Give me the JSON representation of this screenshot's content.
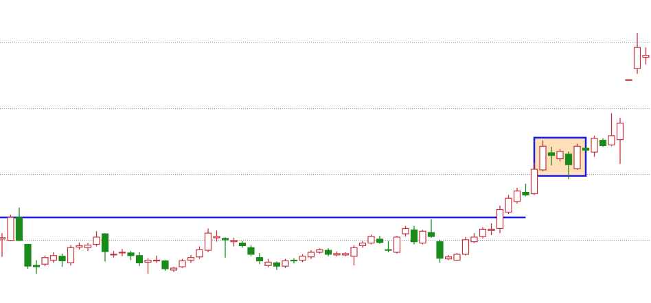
{
  "chart_data": {
    "type": "candlestick",
    "open": [
      1.01,
      0.99,
      1.34,
      0.93,
      0.61,
      0.63,
      0.69,
      0.75,
      0.65,
      0.89,
      0.88,
      0.93,
      1.09,
      0.77,
      0.8,
      0.8,
      0.76,
      0.66,
      0.68,
      0.68,
      0.54,
      0.59,
      0.69,
      0.74,
      0.84,
      1.03,
      1.02,
      0.97,
      0.95,
      0.88,
      0.73,
      0.61,
      0.65,
      0.6,
      0.69,
      0.69,
      0.74,
      0.81,
      0.84,
      0.77,
      0.77,
      0.75,
      0.91,
      0.95,
      1.01,
      0.85,
      0.81,
      1.09,
      1.15,
      0.95,
      1.11,
      0.97,
      0.71,
      0.69,
      0.78,
      0.97,
      1.05,
      1.14,
      1.17,
      1.42,
      1.58,
      1.72,
      1.7,
      2.06,
      2.32,
      2.23,
      2.3,
      2.08,
      2.39,
      2.33,
      2.51,
      2.44,
      2.52,
      3.43,
      3.6,
      3.77
    ],
    "high": [
      1.1,
      1.38,
      1.49,
      0.93,
      0.69,
      0.76,
      0.81,
      0.79,
      0.92,
      0.96,
      0.95,
      1.13,
      1.1,
      0.83,
      0.86,
      0.83,
      0.81,
      0.72,
      0.76,
      0.69,
      0.59,
      0.71,
      0.77,
      0.9,
      1.17,
      1.14,
      1.04,
      1.03,
      0.98,
      0.92,
      0.8,
      0.71,
      0.67,
      0.71,
      0.72,
      0.78,
      0.84,
      0.87,
      0.87,
      0.82,
      0.81,
      0.92,
      0.98,
      1.08,
      1.06,
      0.98,
      1.06,
      1.21,
      1.21,
      1.15,
      1.31,
      1.0,
      0.77,
      0.8,
      1.04,
      1.1,
      1.19,
      1.25,
      1.52,
      1.68,
      1.79,
      1.85,
      2.17,
      2.51,
      2.41,
      2.38,
      2.34,
      2.46,
      2.4,
      2.58,
      2.54,
      2.92,
      2.85,
      3.43,
      4.14,
      3.92
    ],
    "low": [
      0.74,
      0.98,
      0.98,
      0.56,
      0.48,
      0.6,
      0.65,
      0.59,
      0.61,
      0.85,
      0.83,
      0.9,
      0.67,
      0.73,
      0.75,
      0.69,
      0.6,
      0.48,
      0.65,
      0.53,
      0.51,
      0.57,
      0.65,
      0.71,
      0.81,
      0.97,
      0.73,
      0.9,
      0.88,
      0.75,
      0.63,
      0.58,
      0.54,
      0.57,
      0.64,
      0.66,
      0.71,
      0.79,
      0.75,
      0.75,
      0.75,
      0.61,
      0.88,
      0.93,
      0.94,
      0.81,
      0.79,
      1.05,
      0.93,
      0.93,
      1.03,
      0.65,
      0.69,
      0.68,
      0.76,
      0.95,
      1.02,
      1.07,
      1.1,
      1.39,
      1.55,
      1.66,
      1.68,
      2.04,
      2.13,
      2.19,
      1.92,
      2.06,
      2.35,
      2.26,
      2.41,
      2.42,
      2.15,
      3.43,
      3.52,
      3.66
    ],
    "close": [
      1.03,
      1.34,
      0.99,
      0.6,
      0.59,
      0.73,
      0.76,
      0.68,
      0.88,
      0.91,
      0.92,
      1.04,
      0.82,
      0.78,
      0.81,
      0.76,
      0.65,
      0.69,
      0.69,
      0.56,
      0.57,
      0.68,
      0.73,
      0.85,
      1.1,
      1.05,
      1.0,
      0.99,
      0.91,
      0.78,
      0.68,
      0.66,
      0.6,
      0.68,
      0.68,
      0.75,
      0.81,
      0.85,
      0.78,
      0.79,
      0.79,
      0.88,
      0.95,
      1.05,
      0.96,
      0.84,
      1.04,
      1.17,
      0.97,
      1.13,
      1.05,
      0.72,
      0.74,
      0.78,
      1.0,
      1.04,
      1.16,
      1.16,
      1.46,
      1.63,
      1.74,
      1.68,
      2.07,
      2.42,
      2.28,
      2.34,
      2.14,
      2.42,
      2.36,
      2.54,
      2.43,
      2.58,
      2.77,
      3.43,
      3.92,
      3.8
    ],
    "up_color": "#c8303a",
    "down_color": "#1a8a1a",
    "ylim": [
      0.04,
      4.64
    ],
    "yticks": [
      1,
      2,
      3,
      4
    ],
    "grid": true,
    "level_line": {
      "value": 1.34,
      "start": 0,
      "end": 61,
      "color": "#1a1adc"
    },
    "box": {
      "start": 62,
      "end": 68,
      "low": 1.97,
      "high": 2.55,
      "color": "#1a1adc",
      "fill": "#fde0b8"
    }
  }
}
